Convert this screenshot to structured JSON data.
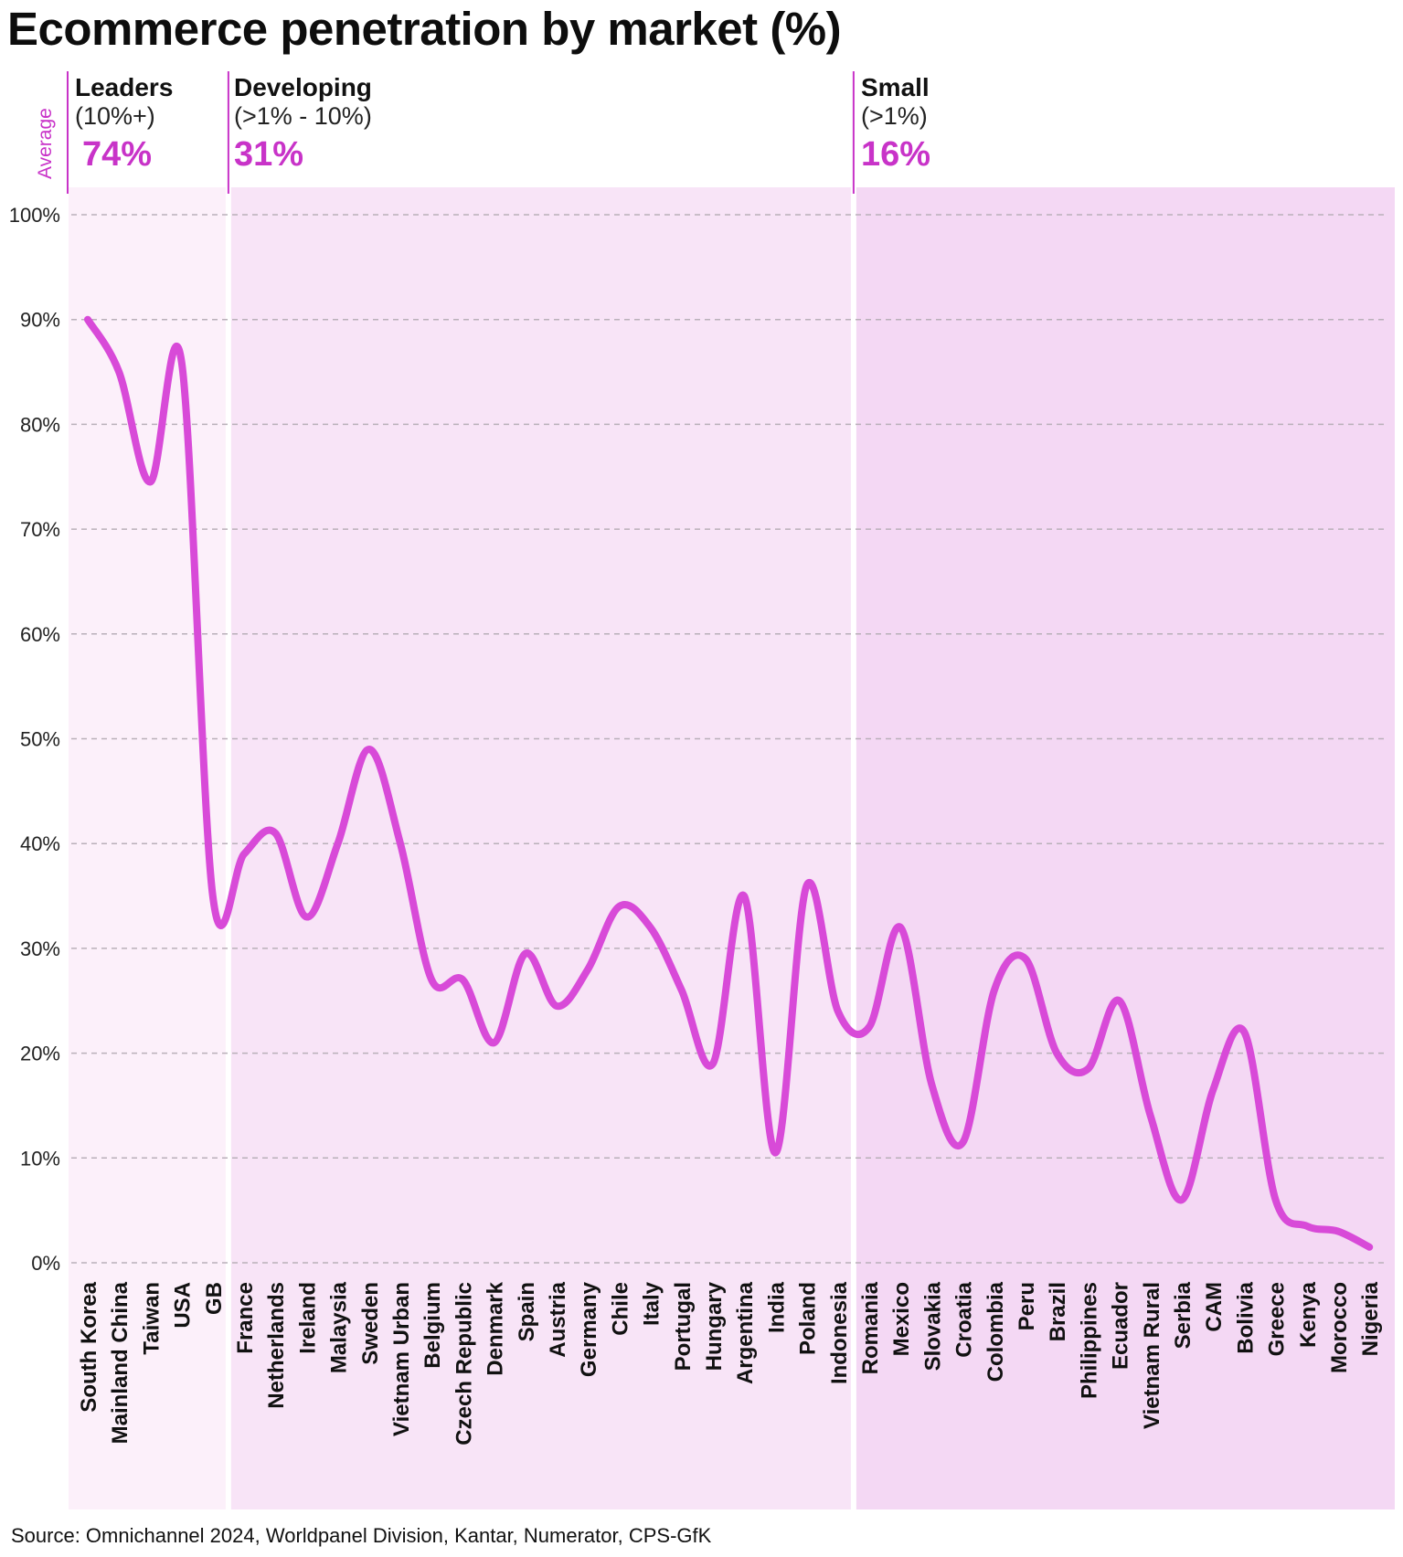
{
  "title": "Ecommerce penetration by market (%)",
  "source": "Source: Omnichannel 2024, Worldpanel Division, Kantar, Numerator, CPS-GfK",
  "average_label": "Average",
  "colors": {
    "line": "#d84ad8",
    "accent": "#c833c8",
    "band_leaders": "#fcf0fa",
    "band_developing": "#f8e4f7",
    "band_small": "#f4d8f4",
    "grid": "#b9b0b9"
  },
  "groups": [
    {
      "name": "Leaders",
      "range": "(10%+)",
      "average": "74%"
    },
    {
      "name": "Developing",
      "range": "(>1% - 10%)",
      "average": "31%"
    },
    {
      "name": "Small",
      "range": "(>1%)",
      "average": "16%"
    }
  ],
  "chart_data": {
    "type": "line",
    "title": "Ecommerce penetration by market (%)",
    "xlabel": "",
    "ylabel": "",
    "ylim": [
      0,
      100
    ],
    "yticks": [
      "0%",
      "10%",
      "20%",
      "30%",
      "40%",
      "50%",
      "60%",
      "70%",
      "80%",
      "90%",
      "100%"
    ],
    "grid": true,
    "categories": [
      "South Korea",
      "Mainland China",
      "Taiwan",
      "USA",
      "GB",
      "France",
      "Netherlands",
      "Ireland",
      "Malaysia",
      "Sweden",
      "Vietnam Urban",
      "Belgium",
      "Czech Republic",
      "Denmark",
      "Spain",
      "Austria",
      "Germany",
      "Chile",
      "Italy",
      "Portugal",
      "Hungary",
      "Argentina",
      "India",
      "Poland",
      "Indonesia",
      "Romania",
      "Mexico",
      "Slovakia",
      "Croatia",
      "Colombia",
      "Peru",
      "Brazil",
      "Philippines",
      "Ecuador",
      "Vietnam Rural",
      "Serbia",
      "CAM",
      "Bolivia",
      "Greece",
      "Kenya",
      "Morocco",
      "Nigeria"
    ],
    "series": [
      {
        "values": [
          90,
          85,
          74.5,
          86,
          35,
          39,
          41,
          33,
          40,
          49,
          40,
          27,
          27,
          21,
          29.5,
          24.5,
          28,
          34,
          32,
          26,
          19,
          35,
          10.5,
          36,
          24,
          22.5,
          32,
          17,
          11.5,
          26,
          29,
          20,
          18.5,
          25,
          14,
          6,
          16.5,
          22,
          6,
          3.5,
          3,
          1.5
        ]
      }
    ],
    "segments": [
      {
        "name": "Leaders",
        "first": "South Korea",
        "last": "GB"
      },
      {
        "name": "Developing",
        "first": "France",
        "last": "Indonesia"
      },
      {
        "name": "Small",
        "first": "Romania",
        "last": "Nigeria"
      }
    ]
  }
}
